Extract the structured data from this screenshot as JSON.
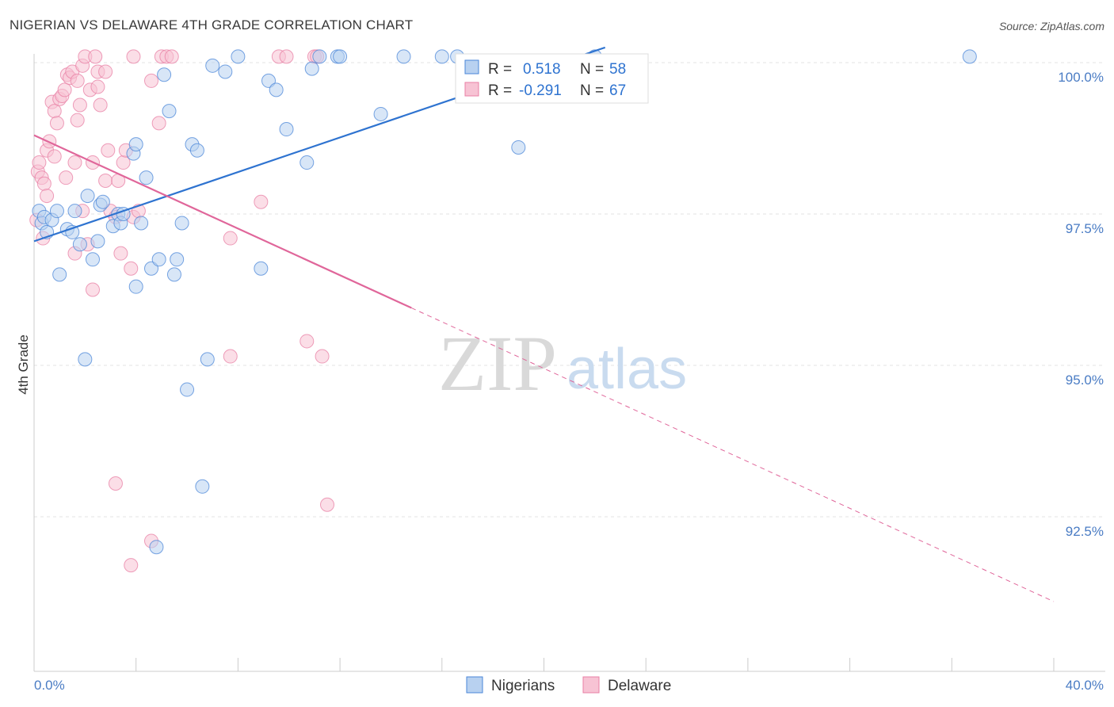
{
  "title": "NIGERIAN VS DELAWARE 4TH GRADE CORRELATION CHART",
  "source": "Source: ZipAtlas.com",
  "watermark": {
    "left": "ZIP",
    "right": "atlas"
  },
  "colors": {
    "blue": "#4a86d8",
    "blue_fill": "#b8d1f0",
    "blue_line": "#2e73d0",
    "pink": "#e87fa4",
    "pink_fill": "#f7c3d4",
    "pink_line": "#e0669a",
    "tick": "#4a7cc4",
    "grid": "#e3e3e3"
  },
  "legend_top": {
    "rows": [
      {
        "r_label": "R =",
        "r_value": "0.518",
        "n_label": "N =",
        "n_value": "58"
      },
      {
        "r_label": "R =",
        "r_value": "-0.291",
        "n_label": "N =",
        "n_value": "67"
      }
    ]
  },
  "legend_bottom": [
    "Nigerians",
    "Delaware"
  ],
  "chart_data": {
    "type": "scatter",
    "title": "NIGERIAN VS DELAWARE 4TH GRADE CORRELATION CHART",
    "xlabel": "",
    "ylabel": "4th Grade",
    "xlim": [
      0,
      40
    ],
    "ylim": [
      90.0,
      100.5
    ],
    "x_tick_labels": [
      "0.0%",
      "40.0%"
    ],
    "y_ticks": [
      92.5,
      95.0,
      97.5,
      100.0
    ],
    "y_tick_labels": [
      "92.5%",
      "95.0%",
      "97.5%",
      "100.0%"
    ],
    "series": [
      {
        "name": "Nigerians",
        "R": 0.518,
        "N": 58,
        "trend": {
          "x": [
            0,
            22.4
          ],
          "y": [
            97.05,
            100.25
          ]
        },
        "points": [
          [
            0.2,
            97.55
          ],
          [
            0.3,
            97.35
          ],
          [
            0.4,
            97.45
          ],
          [
            0.5,
            97.2
          ],
          [
            0.7,
            97.4
          ],
          [
            0.9,
            97.55
          ],
          [
            1.0,
            96.5
          ],
          [
            1.3,
            97.25
          ],
          [
            1.5,
            97.2
          ],
          [
            1.6,
            97.55
          ],
          [
            1.8,
            97.0
          ],
          [
            2.0,
            95.1
          ],
          [
            2.1,
            97.8
          ],
          [
            2.3,
            96.75
          ],
          [
            2.5,
            97.05
          ],
          [
            2.6,
            97.65
          ],
          [
            2.7,
            97.7
          ],
          [
            3.1,
            97.3
          ],
          [
            3.3,
            97.5
          ],
          [
            3.4,
            97.35
          ],
          [
            3.5,
            97.5
          ],
          [
            3.9,
            98.5
          ],
          [
            4.0,
            98.65
          ],
          [
            4.0,
            96.3
          ],
          [
            4.2,
            97.35
          ],
          [
            4.4,
            98.1
          ],
          [
            4.6,
            96.6
          ],
          [
            4.8,
            92.0
          ],
          [
            4.9,
            96.75
          ],
          [
            5.1,
            99.8
          ],
          [
            5.3,
            99.2
          ],
          [
            5.5,
            96.5
          ],
          [
            5.6,
            96.75
          ],
          [
            5.8,
            97.35
          ],
          [
            6.0,
            94.6
          ],
          [
            6.2,
            98.65
          ],
          [
            6.4,
            98.55
          ],
          [
            6.6,
            93.0
          ],
          [
            6.8,
            95.1
          ],
          [
            7.0,
            99.95
          ],
          [
            7.5,
            99.85
          ],
          [
            8.0,
            100.1
          ],
          [
            8.9,
            96.6
          ],
          [
            9.2,
            99.7
          ],
          [
            9.5,
            99.55
          ],
          [
            9.9,
            98.9
          ],
          [
            10.7,
            98.35
          ],
          [
            10.9,
            99.9
          ],
          [
            11.2,
            100.1
          ],
          [
            11.9,
            100.1
          ],
          [
            12.0,
            100.1
          ],
          [
            13.6,
            99.15
          ],
          [
            14.5,
            100.1
          ],
          [
            16.0,
            100.1
          ],
          [
            16.6,
            100.1
          ],
          [
            19.0,
            98.6
          ],
          [
            22.0,
            100.1
          ],
          [
            36.7,
            100.1
          ]
        ]
      },
      {
        "name": "Delaware",
        "R": -0.291,
        "N": 67,
        "trend": {
          "x": [
            0,
            14.8
          ],
          "y": [
            98.8,
            95.95
          ]
        },
        "trend_ext": {
          "x": [
            14.8,
            40
          ],
          "y": [
            95.95,
            91.1
          ]
        },
        "points": [
          [
            0.1,
            97.4
          ],
          [
            0.15,
            98.2
          ],
          [
            0.2,
            98.35
          ],
          [
            0.3,
            98.1
          ],
          [
            0.35,
            97.1
          ],
          [
            0.4,
            98.0
          ],
          [
            0.5,
            98.55
          ],
          [
            0.5,
            97.8
          ],
          [
            0.6,
            98.7
          ],
          [
            0.7,
            99.35
          ],
          [
            0.8,
            98.45
          ],
          [
            0.8,
            99.2
          ],
          [
            0.9,
            99.0
          ],
          [
            1.0,
            99.4
          ],
          [
            1.1,
            99.45
          ],
          [
            1.2,
            99.55
          ],
          [
            1.25,
            98.1
          ],
          [
            1.3,
            99.8
          ],
          [
            1.4,
            99.75
          ],
          [
            1.5,
            99.85
          ],
          [
            1.6,
            98.35
          ],
          [
            1.6,
            96.85
          ],
          [
            1.7,
            99.7
          ],
          [
            1.7,
            99.05
          ],
          [
            1.8,
            99.3
          ],
          [
            1.9,
            99.95
          ],
          [
            1.9,
            97.55
          ],
          [
            2.0,
            100.1
          ],
          [
            2.1,
            97.0
          ],
          [
            2.2,
            99.55
          ],
          [
            2.3,
            98.35
          ],
          [
            2.3,
            96.25
          ],
          [
            2.4,
            100.1
          ],
          [
            2.5,
            99.6
          ],
          [
            2.5,
            99.85
          ],
          [
            2.6,
            99.3
          ],
          [
            2.8,
            99.85
          ],
          [
            2.8,
            98.05
          ],
          [
            2.9,
            98.55
          ],
          [
            3.0,
            97.55
          ],
          [
            3.2,
            97.45
          ],
          [
            3.2,
            93.05
          ],
          [
            3.3,
            98.05
          ],
          [
            3.4,
            96.85
          ],
          [
            3.5,
            98.35
          ],
          [
            3.6,
            98.55
          ],
          [
            3.8,
            96.6
          ],
          [
            3.8,
            91.7
          ],
          [
            3.9,
            97.45
          ],
          [
            3.9,
            100.1
          ],
          [
            4.1,
            97.55
          ],
          [
            4.6,
            99.7
          ],
          [
            4.6,
            92.1
          ],
          [
            4.9,
            99.0
          ],
          [
            5.0,
            100.1
          ],
          [
            5.2,
            100.1
          ],
          [
            5.4,
            100.1
          ],
          [
            7.7,
            95.15
          ],
          [
            7.7,
            97.1
          ],
          [
            8.9,
            97.7
          ],
          [
            9.6,
            100.1
          ],
          [
            9.9,
            100.1
          ],
          [
            10.7,
            95.4
          ],
          [
            11.0,
            100.1
          ],
          [
            11.1,
            100.1
          ],
          [
            11.3,
            95.15
          ],
          [
            11.5,
            92.7
          ]
        ]
      }
    ]
  }
}
